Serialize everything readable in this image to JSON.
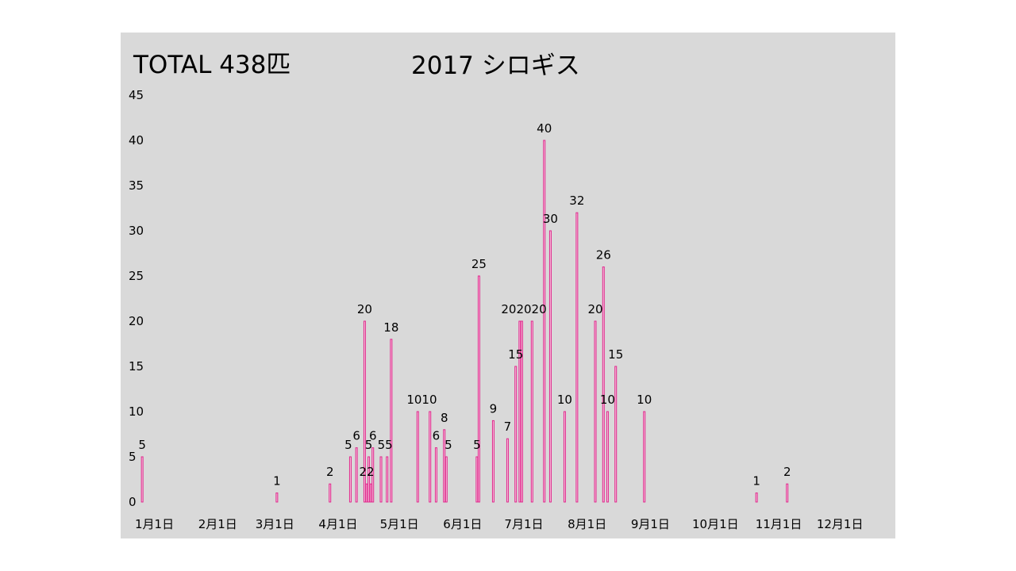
{
  "total_label": "TOTAL 438匹",
  "chart_data": {
    "type": "bar",
    "title": "2017 シロギス",
    "xlabel": "",
    "ylabel": "",
    "ylim": [
      0,
      45
    ],
    "yticks": [
      0,
      5,
      10,
      15,
      20,
      25,
      30,
      35,
      40,
      45
    ],
    "xlim": [
      "2017-01-01",
      "2017-12-31"
    ],
    "xticks": [
      {
        "date": "2017-01-01",
        "label": "1月1日"
      },
      {
        "date": "2017-02-01",
        "label": "2月1日"
      },
      {
        "date": "2017-03-01",
        "label": "3月1日"
      },
      {
        "date": "2017-04-01",
        "label": "4月1日"
      },
      {
        "date": "2017-05-01",
        "label": "5月1日"
      },
      {
        "date": "2017-06-01",
        "label": "6月1日"
      },
      {
        "date": "2017-07-01",
        "label": "7月1日"
      },
      {
        "date": "2017-08-01",
        "label": "8月1日"
      },
      {
        "date": "2017-09-01",
        "label": "9月1日"
      },
      {
        "date": "2017-10-01",
        "label": "10月1日"
      },
      {
        "date": "2017-11-01",
        "label": "11月1日"
      },
      {
        "date": "2017-12-01",
        "label": "12月1日"
      }
    ],
    "bar_color": "#e0288c",
    "grid": false,
    "points": [
      {
        "x": "2017-01-03",
        "y": 5
      },
      {
        "x": "2017-03-10",
        "y": 1
      },
      {
        "x": "2017-04-05",
        "y": 2
      },
      {
        "x": "2017-04-15",
        "y": 5
      },
      {
        "x": "2017-04-18",
        "y": 6
      },
      {
        "x": "2017-04-22",
        "y": 20
      },
      {
        "x": "2017-04-23",
        "y": 2
      },
      {
        "x": "2017-04-24",
        "y": 5
      },
      {
        "x": "2017-04-25",
        "y": 2
      },
      {
        "x": "2017-04-26",
        "y": 6
      },
      {
        "x": "2017-04-30",
        "y": 5
      },
      {
        "x": "2017-05-03",
        "y": 5
      },
      {
        "x": "2017-05-05",
        "y": 18
      },
      {
        "x": "2017-05-18",
        "y": 10
      },
      {
        "x": "2017-05-24",
        "y": 10
      },
      {
        "x": "2017-05-27",
        "y": 6
      },
      {
        "x": "2017-05-31",
        "y": 8
      },
      {
        "x": "2017-06-01",
        "y": 5
      },
      {
        "x": "2017-06-16",
        "y": 5
      },
      {
        "x": "2017-06-17",
        "y": 25
      },
      {
        "x": "2017-06-24",
        "y": 9
      },
      {
        "x": "2017-07-01",
        "y": 7
      },
      {
        "x": "2017-07-05",
        "y": 15
      },
      {
        "x": "2017-07-07",
        "y": 20
      },
      {
        "x": "2017-07-08",
        "y": 20
      },
      {
        "x": "2017-07-13",
        "y": 20
      },
      {
        "x": "2017-07-19",
        "y": 40
      },
      {
        "x": "2017-07-22",
        "y": 30
      },
      {
        "x": "2017-07-29",
        "y": 10
      },
      {
        "x": "2017-08-04",
        "y": 32
      },
      {
        "x": "2017-08-13",
        "y": 20
      },
      {
        "x": "2017-08-17",
        "y": 26
      },
      {
        "x": "2017-08-19",
        "y": 10
      },
      {
        "x": "2017-08-23",
        "y": 15
      },
      {
        "x": "2017-09-06",
        "y": 10
      },
      {
        "x": "2017-10-31",
        "y": 1
      },
      {
        "x": "2017-11-15",
        "y": 2
      }
    ],
    "data_labels": [
      {
        "x": "2017-01-03",
        "y": 5,
        "text": "5"
      },
      {
        "x": "2017-03-10",
        "y": 1,
        "text": "1"
      },
      {
        "x": "2017-04-05",
        "y": 2,
        "text": "2"
      },
      {
        "x": "2017-04-14",
        "y": 5,
        "text": "5"
      },
      {
        "x": "2017-04-18",
        "y": 6,
        "text": "6"
      },
      {
        "x": "2017-04-22",
        "y": 20,
        "text": "20"
      },
      {
        "x": "2017-04-23",
        "y": 2,
        "text": "22"
      },
      {
        "x": "2017-04-24",
        "y": 5,
        "text": "5"
      },
      {
        "x": "2017-04-26",
        "y": 6,
        "text": "6"
      },
      {
        "x": "2017-05-02",
        "y": 5,
        "text": "55"
      },
      {
        "x": "2017-05-05",
        "y": 18,
        "text": "18"
      },
      {
        "x": "2017-05-20",
        "y": 10,
        "text": "1010"
      },
      {
        "x": "2017-05-27",
        "y": 6,
        "text": "6"
      },
      {
        "x": "2017-05-31",
        "y": 8,
        "text": "8"
      },
      {
        "x": "2017-06-02",
        "y": 5,
        "text": "5"
      },
      {
        "x": "2017-06-16",
        "y": 5,
        "text": "5"
      },
      {
        "x": "2017-06-17",
        "y": 25,
        "text": "25"
      },
      {
        "x": "2017-06-24",
        "y": 9,
        "text": "9"
      },
      {
        "x": "2017-07-01",
        "y": 7,
        "text": "7"
      },
      {
        "x": "2017-07-05",
        "y": 15,
        "text": "15"
      },
      {
        "x": "2017-07-09",
        "y": 20,
        "text": "202020"
      },
      {
        "x": "2017-07-19",
        "y": 40,
        "text": "40"
      },
      {
        "x": "2017-07-22",
        "y": 30,
        "text": "30"
      },
      {
        "x": "2017-07-29",
        "y": 10,
        "text": "10"
      },
      {
        "x": "2017-08-04",
        "y": 32,
        "text": "32"
      },
      {
        "x": "2017-08-13",
        "y": 20,
        "text": "20"
      },
      {
        "x": "2017-08-17",
        "y": 26,
        "text": "26"
      },
      {
        "x": "2017-08-19",
        "y": 10,
        "text": "10"
      },
      {
        "x": "2017-08-23",
        "y": 15,
        "text": "15"
      },
      {
        "x": "2017-09-06",
        "y": 10,
        "text": "10"
      },
      {
        "x": "2017-10-31",
        "y": 1,
        "text": "1"
      },
      {
        "x": "2017-11-15",
        "y": 2,
        "text": "2"
      }
    ]
  }
}
